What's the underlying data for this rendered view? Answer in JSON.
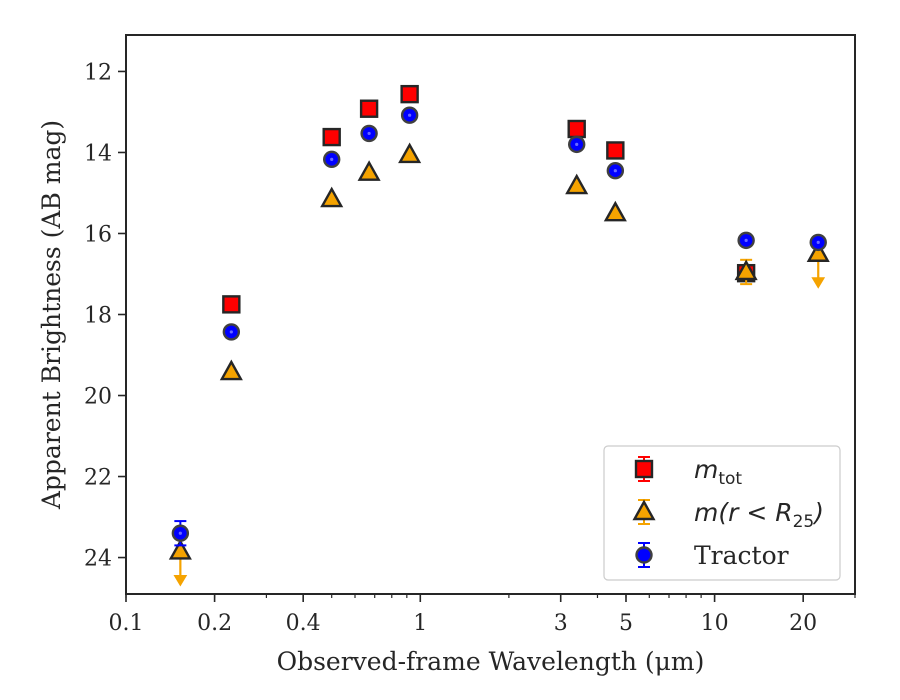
{
  "chart_data": {
    "type": "scatter",
    "title": "",
    "xlabel": "Observed-frame Wavelength (μm)",
    "ylabel": "Apparent Brightness (AB mag)",
    "xscale": "log",
    "xlim": [
      0.1,
      30
    ],
    "ylim": [
      24.9,
      11.1
    ],
    "y_inverted": true,
    "x_ticks": [
      {
        "value": 0.1,
        "label": "0.1"
      },
      {
        "value": 0.2,
        "label": "0.2"
      },
      {
        "value": 0.4,
        "label": "0.4"
      },
      {
        "value": 1,
        "label": "1"
      },
      {
        "value": 3,
        "label": "3"
      },
      {
        "value": 5,
        "label": "5"
      },
      {
        "value": 10,
        "label": "10"
      },
      {
        "value": 20,
        "label": "20"
      }
    ],
    "y_ticks": [
      12,
      14,
      16,
      18,
      20,
      22,
      24
    ],
    "legend": {
      "location": "lower-right"
    },
    "series": [
      {
        "name": "m_tot",
        "legend_main": "m",
        "legend_sub": "tot",
        "marker": "square",
        "color": "#ff0000",
        "edge_color": "#262626",
        "errbar_color": "#ff0000",
        "points": [
          {
            "x": 0.228,
            "y": 17.75
          },
          {
            "x": 0.5,
            "y": 13.62
          },
          {
            "x": 0.67,
            "y": 12.92
          },
          {
            "x": 0.92,
            "y": 12.56
          },
          {
            "x": 3.4,
            "y": 13.42
          },
          {
            "x": 4.6,
            "y": 13.95
          },
          {
            "x": 12.8,
            "y": 16.98
          }
        ]
      },
      {
        "name": "m(r < R25)",
        "legend_main": "m(r < R",
        "legend_sub": "25",
        "legend_tail": ")",
        "marker": "triangle",
        "color": "#f5a300",
        "edge_color": "#262626",
        "errbar_color": "#f5a300",
        "points": [
          {
            "x": 0.153,
            "y": 23.85,
            "upper_limit": true
          },
          {
            "x": 0.228,
            "y": 19.42
          },
          {
            "x": 0.5,
            "y": 15.15
          },
          {
            "x": 0.67,
            "y": 14.5
          },
          {
            "x": 0.92,
            "y": 14.06
          },
          {
            "x": 3.4,
            "y": 14.83
          },
          {
            "x": 4.6,
            "y": 15.5
          },
          {
            "x": 12.8,
            "y": 16.95,
            "yerr": 0.3
          },
          {
            "x": 22.5,
            "y": 16.5,
            "upper_limit": true
          }
        ]
      },
      {
        "name": "Tractor",
        "legend_main": "Tractor",
        "marker": "circle",
        "color": "#0000ff",
        "edge_color": "#404040",
        "errbar_color": "#0000ff",
        "points": [
          {
            "x": 0.153,
            "y": 23.4,
            "yerr": 0.3
          },
          {
            "x": 0.228,
            "y": 18.43
          },
          {
            "x": 0.5,
            "y": 14.17
          },
          {
            "x": 0.67,
            "y": 13.53
          },
          {
            "x": 0.92,
            "y": 13.08
          },
          {
            "x": 3.4,
            "y": 13.8
          },
          {
            "x": 4.6,
            "y": 14.45
          },
          {
            "x": 12.8,
            "y": 16.17
          },
          {
            "x": 22.5,
            "y": 16.22
          }
        ]
      }
    ]
  }
}
